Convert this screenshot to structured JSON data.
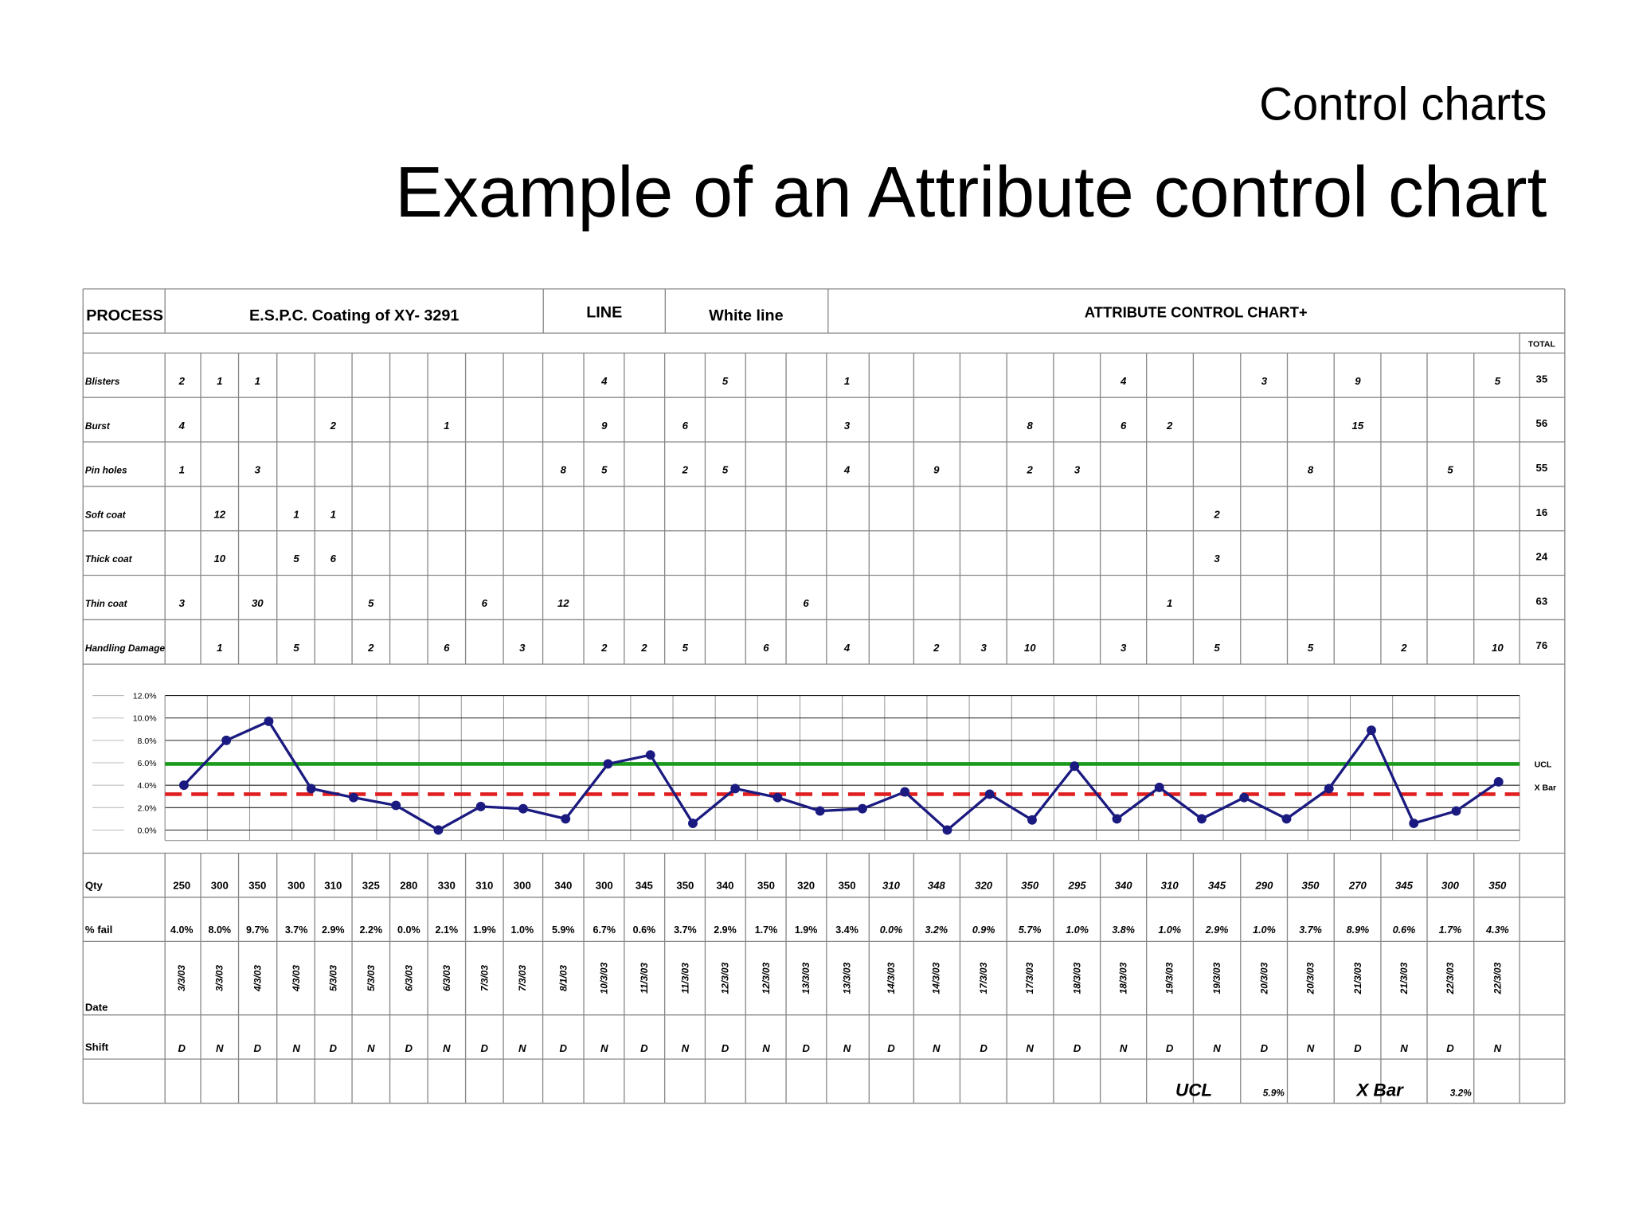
{
  "header": {
    "subtitle": "Control charts",
    "title": "Example of an Attribute control chart"
  },
  "table": {
    "process_label": "PROCESS",
    "process": "E.S.P.C. Coating of XY- 3291",
    "line_label": "LINE",
    "line": "White line",
    "chart_name": "ATTRIBUTE CONTROL CHART+",
    "total_label": "TOTAL",
    "defects": [
      {
        "label": "Blisters",
        "total": 35,
        "counts": [
          2,
          1,
          1,
          null,
          null,
          null,
          null,
          null,
          null,
          null,
          null,
          4,
          null,
          null,
          5,
          null,
          null,
          1,
          null,
          null,
          null,
          null,
          null,
          4,
          null,
          null,
          3,
          null,
          9,
          null,
          null,
          5
        ]
      },
      {
        "label": "Burst",
        "total": 56,
        "counts": [
          4,
          null,
          null,
          null,
          2,
          null,
          null,
          1,
          null,
          null,
          null,
          9,
          null,
          6,
          null,
          null,
          null,
          3,
          null,
          null,
          null,
          8,
          null,
          6,
          2,
          null,
          null,
          null,
          15,
          null,
          null,
          null
        ]
      },
      {
        "label": "Pin holes",
        "total": 55,
        "counts": [
          1,
          null,
          3,
          null,
          null,
          null,
          null,
          null,
          null,
          null,
          8,
          5,
          null,
          2,
          5,
          null,
          null,
          4,
          null,
          9,
          null,
          2,
          3,
          null,
          null,
          null,
          null,
          8,
          null,
          null,
          5,
          null
        ]
      },
      {
        "label": "Soft coat",
        "total": 16,
        "counts": [
          null,
          12,
          null,
          1,
          1,
          null,
          null,
          null,
          null,
          null,
          null,
          null,
          null,
          null,
          null,
          null,
          null,
          null,
          null,
          null,
          null,
          null,
          null,
          null,
          null,
          2,
          null,
          null,
          null,
          null,
          null,
          null
        ]
      },
      {
        "label": "Thick coat",
        "total": 24,
        "counts": [
          null,
          10,
          null,
          5,
          6,
          null,
          null,
          null,
          null,
          null,
          null,
          null,
          null,
          null,
          null,
          null,
          null,
          null,
          null,
          null,
          null,
          null,
          null,
          null,
          null,
          3,
          null,
          null,
          null,
          null,
          null,
          null
        ]
      },
      {
        "label": "Thin coat",
        "total": 63,
        "counts": [
          3,
          null,
          30,
          null,
          null,
          5,
          null,
          null,
          6,
          null,
          12,
          null,
          null,
          null,
          null,
          null,
          6,
          null,
          null,
          null,
          null,
          null,
          null,
          null,
          1,
          null,
          null,
          null,
          null,
          null,
          null,
          null
        ]
      },
      {
        "label": "Handling Damage",
        "total": 76,
        "counts": [
          null,
          1,
          null,
          5,
          null,
          2,
          null,
          6,
          null,
          3,
          null,
          2,
          2,
          5,
          null,
          6,
          null,
          4,
          null,
          2,
          3,
          10,
          null,
          3,
          null,
          5,
          null,
          5,
          null,
          2,
          null,
          10
        ]
      }
    ],
    "qty_label": "Qty",
    "qty": [
      250,
      300,
      350,
      300,
      310,
      325,
      280,
      330,
      310,
      300,
      340,
      300,
      345,
      350,
      340,
      350,
      320,
      350,
      310,
      348,
      320,
      350,
      295,
      340,
      310,
      345,
      290,
      350,
      270,
      345,
      300,
      350
    ],
    "fail_label": "% fail",
    "date_label": "Date",
    "shift_label": "Shift",
    "shifts": [
      "D",
      "N",
      "D",
      "N",
      "D",
      "N",
      "D",
      "N",
      "D",
      "N",
      "D",
      "N",
      "D",
      "N",
      "D",
      "N",
      "D",
      "N",
      "D",
      "N",
      "D",
      "N",
      "D",
      "N",
      "D",
      "N",
      "D",
      "N",
      "D",
      "N",
      "D",
      "N"
    ]
  },
  "chart_data": {
    "type": "line",
    "categories": [
      "3/3/03",
      "3/3/03",
      "4/3/03",
      "4/3/03",
      "5/3/03",
      "5/3/03",
      "6/3/03",
      "6/3/03",
      "7/3/03",
      "7/3/03",
      "8/1/03",
      "10/3/03",
      "11/3/03",
      "11/3/03",
      "12/3/03",
      "12/3/03",
      "13/3/03",
      "13/3/03",
      "14/3/03",
      "14/3/03",
      "17/3/03",
      "17/3/03",
      "18/3/03",
      "18/3/03",
      "19/3/03",
      "19/3/03",
      "20/3/03",
      "20/3/03",
      "21/3/03",
      "21/3/03",
      "22/3/03",
      "22/3/03"
    ],
    "values": [
      4.0,
      8.0,
      9.7,
      3.7,
      2.9,
      2.2,
      0.0,
      2.1,
      1.9,
      1.0,
      5.9,
      6.7,
      0.6,
      3.7,
      2.9,
      1.7,
      1.9,
      3.4,
      0.0,
      3.2,
      0.9,
      5.7,
      1.0,
      3.8,
      1.0,
      2.9,
      1.0,
      3.7,
      8.9,
      0.6,
      1.7,
      4.3
    ],
    "value_labels": [
      "4.0%",
      "8.0%",
      "9.7%",
      "3.7%",
      "2.9%",
      "2.2%",
      "0.0%",
      "2.1%",
      "1.9%",
      "1.0%",
      "5.9%",
      "6.7%",
      "0.6%",
      "3.7%",
      "2.9%",
      "1.7%",
      "1.9%",
      "3.4%",
      "0.0%",
      "3.2%",
      "0.9%",
      "5.7%",
      "1.0%",
      "3.8%",
      "1.0%",
      "2.9%",
      "1.0%",
      "3.7%",
      "8.9%",
      "0.6%",
      "1.7%",
      "4.3%"
    ],
    "color": "#1a1a80",
    "ylim": [
      0,
      12
    ],
    "yticks": [
      {
        "value": 0,
        "label": "0.0%"
      },
      {
        "value": 2,
        "label": "2.0%"
      },
      {
        "value": 4,
        "label": "4.0%"
      },
      {
        "value": 6,
        "label": "6.0%"
      },
      {
        "value": 8,
        "label": "8.0%"
      },
      {
        "value": 10,
        "label": "10.0%"
      },
      {
        "value": 12,
        "label": "12.0%"
      }
    ],
    "grid": true,
    "ucl": {
      "label": "UCL",
      "value": 5.9,
      "value_label": "5.9%",
      "color": "#1a9a1a"
    },
    "xbar": {
      "label": "X Bar",
      "value": 3.2,
      "value_label": "3.2%",
      "color": "#e02020"
    }
  }
}
